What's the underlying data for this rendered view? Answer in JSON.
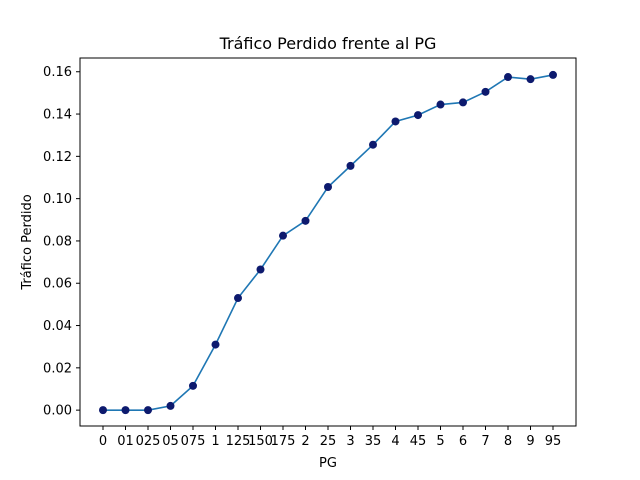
{
  "chart_data": {
    "type": "line",
    "title": "Tráfico Perdido frente al PG",
    "xlabel": "PG",
    "ylabel": "Tráfico Perdido",
    "categories": [
      "0",
      "01",
      "025",
      "05",
      "075",
      "1",
      "125",
      "150",
      "175",
      "2",
      "25",
      "3",
      "35",
      "4",
      "45",
      "5",
      "6",
      "7",
      "8",
      "9",
      "95"
    ],
    "values": [
      0.0,
      0.0,
      0.0,
      0.002,
      0.0115,
      0.031,
      0.053,
      0.0665,
      0.0825,
      0.0895,
      0.1055,
      0.1155,
      0.1255,
      0.1365,
      0.1395,
      0.1445,
      0.1455,
      0.1505,
      0.1575,
      0.1565,
      0.1585
    ],
    "ylim": [
      -0.0075,
      0.1665
    ],
    "yticks": [
      "0.00",
      "0.02",
      "0.04",
      "0.06",
      "0.08",
      "0.10",
      "0.12",
      "0.14",
      "0.16"
    ],
    "ytick_values": [
      0.0,
      0.02,
      0.04,
      0.06,
      0.08,
      0.1,
      0.12,
      0.14,
      0.16
    ],
    "grid": false,
    "line_color": "#1f77b4",
    "marker_color": "#0d1a6e"
  }
}
